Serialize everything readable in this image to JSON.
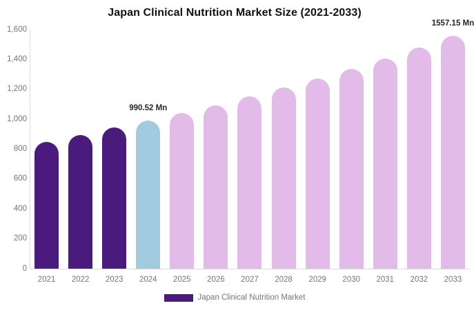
{
  "chart_data": {
    "type": "bar",
    "title": "Japan Clinical Nutrition Market Size (2021-2033)",
    "categories": [
      "2021",
      "2022",
      "2023",
      "2024",
      "2025",
      "2026",
      "2027",
      "2028",
      "2029",
      "2030",
      "2031",
      "2032",
      "2033"
    ],
    "values": [
      849,
      894,
      943,
      990.52,
      1042,
      1095,
      1152,
      1211,
      1273,
      1339,
      1408,
      1480,
      1557.15
    ],
    "bar_colors": [
      "#4A1A7D",
      "#4A1A7D",
      "#4A1A7D",
      "#A3CBDF",
      "#E3BBE8",
      "#E3BBE8",
      "#E3BBE8",
      "#E3BBE8",
      "#E3BBE8",
      "#E3BBE8",
      "#E3BBE8",
      "#E3BBE8",
      "#E3BBE8"
    ],
    "xlabel": "",
    "ylabel": "",
    "ylim": [
      0,
      1600
    ],
    "ytick_interval": 200,
    "yticks": [
      "0",
      "200",
      "400",
      "600",
      "800",
      "1,000",
      "1,200",
      "1,400",
      "1,600"
    ],
    "grid": false,
    "legend_position": "bottom",
    "annotations": [
      {
        "index": 3,
        "category": "2024",
        "text": "990.52 Mn"
      },
      {
        "index": 12,
        "category": "2033",
        "text": "1557.15 Mn"
      }
    ],
    "legend": {
      "label": "Japan Clinical Nutrition Market",
      "color": "#4A1A7D"
    }
  },
  "colors": {
    "historical_bar": "#4A1A7D",
    "highlight_bar": "#A3CBDF",
    "forecast_bar": "#E3BBE8",
    "axis_line": "#D9D9D9",
    "axis_text": "#757575",
    "title_text": "#111111",
    "annotation_text": "#262626",
    "background": "#FFFFFF"
  }
}
